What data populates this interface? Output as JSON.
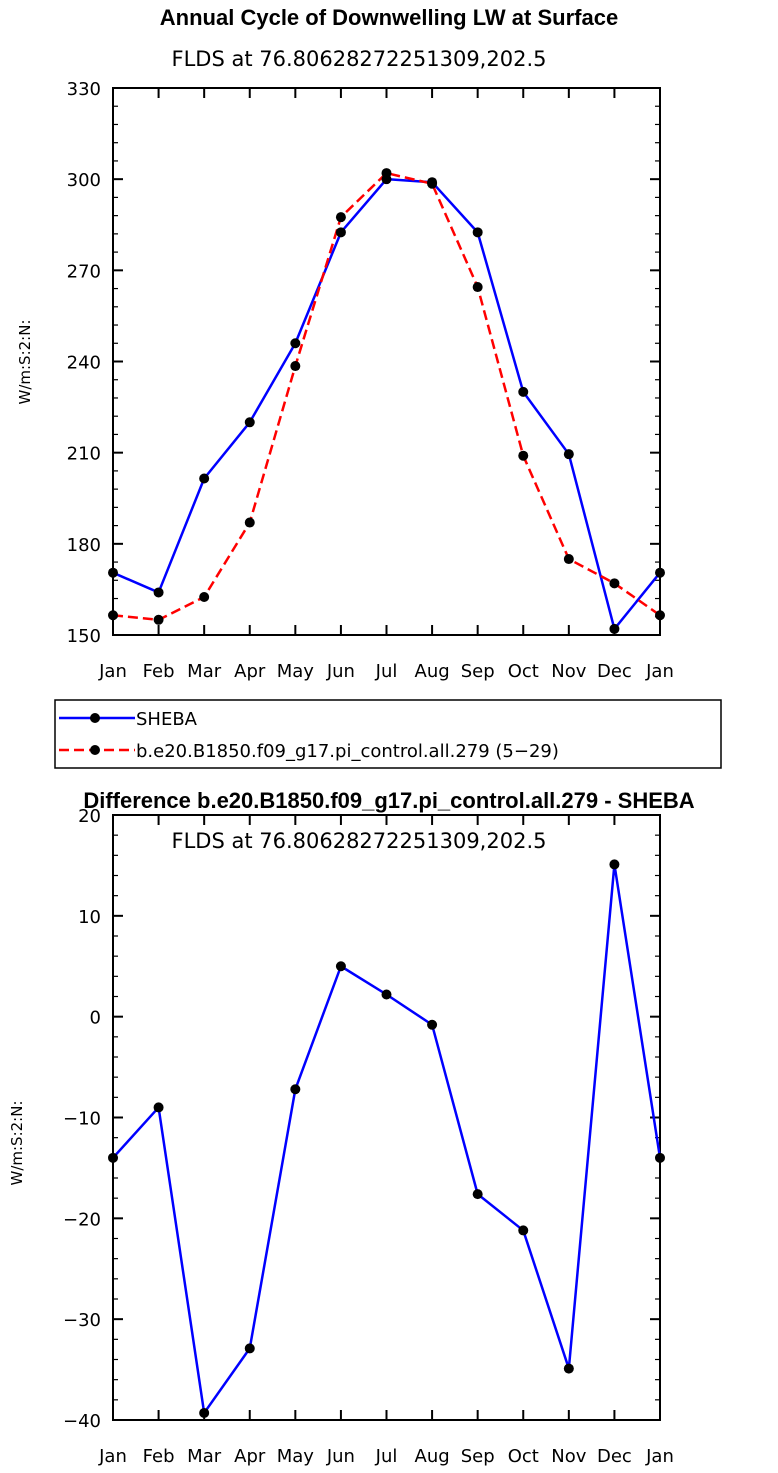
{
  "chart_data": [
    {
      "type": "line",
      "title": "Annual Cycle of Downwelling LW at Surface",
      "subtitle": "FLDS at 76.80628272251309,202.5",
      "ylabel": "W/m:S:2:N:",
      "categories": [
        "Jan",
        "Feb",
        "Mar",
        "Apr",
        "May",
        "Jun",
        "Jul",
        "Aug",
        "Sep",
        "Oct",
        "Nov",
        "Dec",
        "Jan"
      ],
      "ylim": [
        150,
        330
      ],
      "yticks": [
        150,
        180,
        210,
        240,
        270,
        300,
        330
      ],
      "series": [
        {
          "name": "SHEBA",
          "color": "#0000ff",
          "dash": "solid",
          "values": [
            170.5,
            164,
            201.5,
            220,
            246,
            282.5,
            300,
            299,
            282.5,
            230,
            209.5,
            152,
            170.5
          ]
        },
        {
          "name": "b.e20.B1850.f09_g17.pi_control.all.279 (5−29)",
          "color": "#ff0000",
          "dash": "dashed",
          "values": [
            156.5,
            155,
            162.5,
            187,
            238.5,
            287.5,
            302,
            298.5,
            264.5,
            209,
            175,
            167,
            156.5
          ]
        }
      ],
      "legend_position": "below"
    },
    {
      "type": "line",
      "title": "Difference b.e20.B1850.f09_g17.pi_control.all.279 - SHEBA",
      "subtitle": "FLDS at 76.80628272251309,202.5",
      "ylabel": "W/m:S:2:N:",
      "categories": [
        "Jan",
        "Feb",
        "Mar",
        "Apr",
        "May",
        "Jun",
        "Jul",
        "Aug",
        "Sep",
        "Oct",
        "Nov",
        "Dec",
        "Jan"
      ],
      "ylim": [
        -40,
        20
      ],
      "yticks": [
        -40,
        -30,
        -20,
        -10,
        0,
        10,
        20
      ],
      "ytick_labels": [
        "−40",
        "−30",
        "−20",
        "−10",
        "0",
        "10",
        "20"
      ],
      "series": [
        {
          "color": "#0000ff",
          "dash": "solid",
          "values": [
            -14,
            -9,
            -39.3,
            -32.9,
            -7.2,
            5,
            2.2,
            -0.8,
            -17.6,
            -21.2,
            -34.9,
            15.1,
            -14
          ]
        }
      ]
    }
  ]
}
